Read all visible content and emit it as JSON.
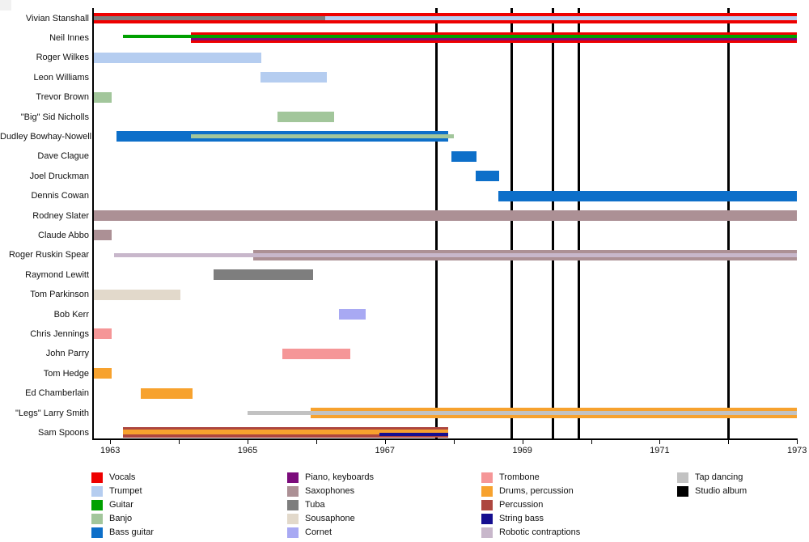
{
  "chart_data": {
    "type": "timeline",
    "x_axis": {
      "year_min": 1962.75,
      "year_max": 1973,
      "tick_years": [
        1963,
        1964,
        1965,
        1966,
        1967,
        1968,
        1969,
        1970,
        1971,
        1972,
        1973
      ],
      "labeled_ticks": [
        1963,
        1965,
        1967,
        1969,
        1971,
        1973
      ]
    },
    "albums": {
      "legend_label": "Studio album",
      "years": [
        1967.75,
        1968.84,
        1969.44,
        1969.82,
        1972.0
      ]
    },
    "instruments": {
      "vocals": {
        "label": "Vocals",
        "color": "#ee0000"
      },
      "trumpet": {
        "label": "Trumpet",
        "color": "#b5cdf0"
      },
      "guitar": {
        "label": "Guitar",
        "color": "#00a000"
      },
      "banjo": {
        "label": "Banjo",
        "color": "#a2c69b"
      },
      "bass_guitar": {
        "label": "Bass guitar",
        "color": "#0d6fc9"
      },
      "piano_keyboards": {
        "label": "Piano, keyboards",
        "color": "#7b0b7b"
      },
      "saxophones": {
        "label": "Saxophones",
        "color": "#ac9095"
      },
      "tuba": {
        "label": "Tuba",
        "color": "#7e7e7e"
      },
      "sousaphone": {
        "label": "Sousaphone",
        "color": "#e2d9cb"
      },
      "cornet": {
        "label": "Cornet",
        "color": "#a8a9f3"
      },
      "trombone": {
        "label": "Trombone",
        "color": "#f59697"
      },
      "drums_percussion": {
        "label": "Drums, percussion",
        "color": "#f7a22e"
      },
      "percussion": {
        "label": "Percussion",
        "color": "#ad463f"
      },
      "string_bass": {
        "label": "String bass",
        "color": "#150e90"
      },
      "robotic_contraptions": {
        "label": "Robotic contraptions",
        "color": "#c8b7cb"
      },
      "tap_dancing": {
        "label": "Tap dancing",
        "color": "#c2c2c2"
      },
      "studio_album": {
        "label": "Studio album",
        "color": "#000000"
      }
    },
    "members": [
      {
        "name": "Vivian Stanshall",
        "segments": [
          {
            "instrument": "vocals",
            "from": 1962.75,
            "to": 1973,
            "lane": "full"
          },
          {
            "instrument": "tuba",
            "from": 1962.75,
            "to": 1966.13,
            "lane": "mid"
          },
          {
            "instrument": "trumpet",
            "from": 1966.13,
            "to": 1973,
            "lane": "mid"
          }
        ]
      },
      {
        "name": "Neil Innes",
        "segments": [
          {
            "instrument": "vocals",
            "from": 1964.18,
            "to": 1973,
            "lane": "full"
          },
          {
            "instrument": "guitar",
            "from": 1963.18,
            "to": 1973,
            "lane": "upper"
          },
          {
            "instrument": "piano_keyboards",
            "from": 1964.18,
            "to": 1973,
            "lane": "lower"
          }
        ]
      },
      {
        "name": "Roger Wilkes",
        "segments": [
          {
            "instrument": "trumpet",
            "from": 1962.75,
            "to": 1965.2,
            "lane": "full"
          }
        ]
      },
      {
        "name": "Leon Williams",
        "segments": [
          {
            "instrument": "trumpet",
            "from": 1965.19,
            "to": 1966.15,
            "lane": "full"
          }
        ]
      },
      {
        "name": "Trevor Brown",
        "segments": [
          {
            "instrument": "banjo",
            "from": 1962.75,
            "to": 1963.02,
            "lane": "full"
          }
        ]
      },
      {
        "name": "\"Big\" Sid Nicholls",
        "segments": [
          {
            "instrument": "banjo",
            "from": 1965.43,
            "to": 1966.26,
            "lane": "full"
          }
        ]
      },
      {
        "name": "Dudley Bowhay-Nowell",
        "segments": [
          {
            "instrument": "bass_guitar",
            "from": 1963.09,
            "to": 1967.92,
            "lane": "full"
          },
          {
            "instrument": "banjo",
            "from": 1964.18,
            "to": 1968.0,
            "lane": "mid"
          }
        ]
      },
      {
        "name": "Dave Clague",
        "segments": [
          {
            "instrument": "bass_guitar",
            "from": 1967.97,
            "to": 1968.33,
            "lane": "full"
          }
        ]
      },
      {
        "name": "Joel Druckman",
        "segments": [
          {
            "instrument": "bass_guitar",
            "from": 1968.32,
            "to": 1968.66,
            "lane": "full"
          }
        ]
      },
      {
        "name": "Dennis Cowan",
        "segments": [
          {
            "instrument": "bass_guitar",
            "from": 1968.65,
            "to": 1973,
            "lane": "full"
          }
        ]
      },
      {
        "name": "Rodney Slater",
        "segments": [
          {
            "instrument": "saxophones",
            "from": 1962.75,
            "to": 1973,
            "lane": "full"
          }
        ]
      },
      {
        "name": "Claude Abbo",
        "segments": [
          {
            "instrument": "saxophones",
            "from": 1962.75,
            "to": 1963.02,
            "lane": "full"
          }
        ]
      },
      {
        "name": "Roger Ruskin Spear",
        "segments": [
          {
            "instrument": "saxophones",
            "from": 1965.08,
            "to": 1973,
            "lane": "full"
          },
          {
            "instrument": "robotic_contraptions",
            "from": 1963.05,
            "to": 1973,
            "lane": "mid"
          }
        ]
      },
      {
        "name": "Raymond Lewitt",
        "segments": [
          {
            "instrument": "tuba",
            "from": 1964.5,
            "to": 1965.95,
            "lane": "full"
          }
        ]
      },
      {
        "name": "Tom Parkinson",
        "segments": [
          {
            "instrument": "sousaphone",
            "from": 1962.75,
            "to": 1964.02,
            "lane": "full"
          }
        ]
      },
      {
        "name": "Bob Kerr",
        "segments": [
          {
            "instrument": "cornet",
            "from": 1966.33,
            "to": 1966.72,
            "lane": "full"
          }
        ]
      },
      {
        "name": "Chris Jennings",
        "segments": [
          {
            "instrument": "trombone",
            "from": 1962.75,
            "to": 1963.02,
            "lane": "full"
          }
        ]
      },
      {
        "name": "John Parry",
        "segments": [
          {
            "instrument": "trombone",
            "from": 1965.5,
            "to": 1966.5,
            "lane": "full"
          }
        ]
      },
      {
        "name": "Tom Hedge",
        "segments": [
          {
            "instrument": "drums_percussion",
            "from": 1962.75,
            "to": 1963.02,
            "lane": "full"
          }
        ]
      },
      {
        "name": "Ed Chamberlain",
        "segments": [
          {
            "instrument": "drums_percussion",
            "from": 1963.45,
            "to": 1964.2,
            "lane": "full"
          }
        ]
      },
      {
        "name": "\"Legs\" Larry Smith",
        "segments": [
          {
            "instrument": "drums_percussion",
            "from": 1965.92,
            "to": 1973,
            "lane": "full"
          },
          {
            "instrument": "tap_dancing",
            "from": 1965.0,
            "to": 1973,
            "lane": "mid"
          }
        ]
      },
      {
        "name": "Sam Spoons",
        "segments": [
          {
            "instrument": "percussion",
            "from": 1963.19,
            "to": 1967.92,
            "lane": "full"
          },
          {
            "instrument": "drums_percussion",
            "from": 1963.19,
            "to": 1967.92,
            "lane": "band"
          },
          {
            "instrument": "string_bass",
            "from": 1966.92,
            "to": 1967.92,
            "lane": "low"
          }
        ]
      }
    ],
    "legend": {
      "columns": [
        [
          "vocals",
          "trumpet",
          "guitar",
          "banjo",
          "bass_guitar"
        ],
        [
          "piano_keyboards",
          "saxophones",
          "tuba",
          "sousaphone",
          "cornet"
        ],
        [
          "trombone",
          "drums_percussion",
          "percussion",
          "string_bass",
          "robotic_contraptions"
        ],
        [
          "tap_dancing",
          "studio_album"
        ]
      ]
    }
  }
}
